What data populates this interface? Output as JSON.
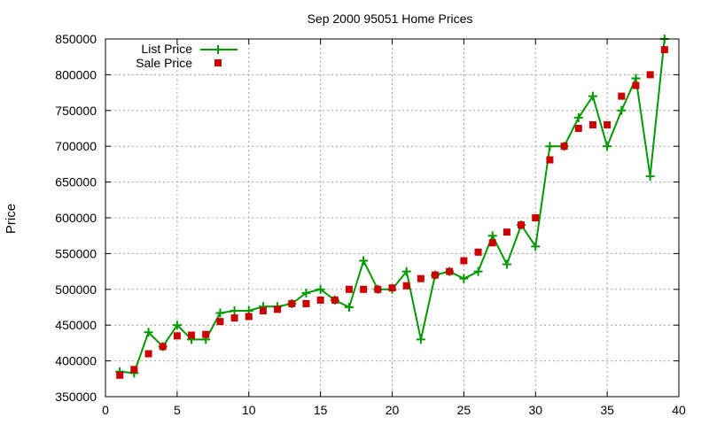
{
  "chart_data": {
    "type": "line",
    "title": "Sep 2000 95051 Home Prices",
    "xlabel": "",
    "ylabel": "Price",
    "xlim": [
      0,
      40
    ],
    "ylim": [
      350000,
      850000
    ],
    "xticks": [
      0,
      5,
      10,
      15,
      20,
      25,
      30,
      35,
      40
    ],
    "yticks": [
      350000,
      400000,
      450000,
      500000,
      550000,
      600000,
      650000,
      700000,
      750000,
      800000,
      850000
    ],
    "grid": true,
    "legend_position": "top-left",
    "series": [
      {
        "name": "List Price",
        "style": "line-with-plus-markers",
        "color": "#009900",
        "x": [
          1,
          2,
          3,
          4,
          5,
          6,
          7,
          8,
          9,
          10,
          11,
          12,
          13,
          14,
          15,
          16,
          17,
          18,
          19,
          20,
          21,
          22,
          23,
          24,
          25,
          26,
          27,
          28,
          29,
          30,
          31,
          32,
          33,
          34,
          35,
          36,
          37,
          38,
          39
        ],
        "values": [
          385000,
          383000,
          440000,
          420000,
          450000,
          430000,
          430000,
          467000,
          470000,
          470000,
          476000,
          476000,
          480000,
          495000,
          500000,
          485000,
          475000,
          540000,
          500000,
          500000,
          525000,
          430000,
          520000,
          525000,
          515000,
          525000,
          575000,
          535000,
          590000,
          560000,
          700000,
          700000,
          740000,
          770000,
          700000,
          750000,
          795000,
          658000,
          850000
        ]
      },
      {
        "name": "Sale Price",
        "style": "square-markers",
        "color": "#cc0000",
        "x": [
          1,
          2,
          3,
          4,
          5,
          6,
          7,
          8,
          9,
          10,
          11,
          12,
          13,
          14,
          15,
          16,
          17,
          18,
          19,
          20,
          21,
          22,
          23,
          24,
          25,
          26,
          27,
          28,
          29,
          30,
          31,
          32,
          33,
          34,
          35,
          36,
          37,
          38,
          39
        ],
        "values": [
          380000,
          388000,
          410000,
          420000,
          435000,
          436000,
          437000,
          455000,
          460000,
          462000,
          470000,
          472000,
          480000,
          480000,
          485000,
          485000,
          500000,
          500000,
          500000,
          502000,
          505000,
          515000,
          520000,
          525000,
          540000,
          552000,
          565000,
          580000,
          590000,
          600000,
          681000,
          700000,
          725000,
          730000,
          730000,
          770000,
          785000,
          800000,
          835000
        ]
      }
    ]
  }
}
